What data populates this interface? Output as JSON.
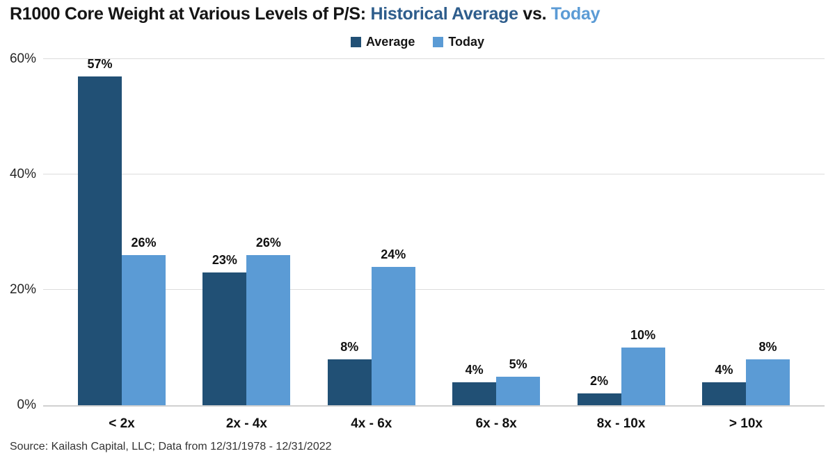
{
  "title": {
    "prefix": "R1000 Core Weight at Various Levels of P/S: ",
    "highlight_average": "Historical Average",
    "middle": " vs. ",
    "highlight_today": "Today"
  },
  "colors": {
    "title_dark": "#2E5D8C",
    "title_light": "#5B9BD5",
    "gridline": "#DCDCDC",
    "axis_line": "#D0D0D0"
  },
  "source": {
    "text": "Source: Kailash Capital, LLC; Data from 12/31/1978 - 12/31/2022"
  },
  "chart_data": {
    "type": "bar",
    "title": "R1000 Core Weight at Various Levels of P/S: Historical Average vs. Today",
    "categories": [
      "< 2x",
      "2x - 4x",
      "4x - 6x",
      "6x - 8x",
      "8x - 10x",
      "> 10x"
    ],
    "series": [
      {
        "name": "Average",
        "color": "#215075",
        "values": [
          57,
          23,
          8,
          4,
          2,
          4
        ]
      },
      {
        "name": "Today",
        "color": "#5B9BD5",
        "values": [
          26,
          26,
          24,
          5,
          10,
          8
        ]
      }
    ],
    "value_suffix": "%",
    "xlabel": "",
    "ylabel": "",
    "ylim": [
      0,
      60
    ],
    "yticks": [
      0,
      20,
      40,
      60
    ],
    "ytick_labels": [
      "0%",
      "20%",
      "40%",
      "60%"
    ],
    "grid": true,
    "legend_position": "top-center"
  }
}
